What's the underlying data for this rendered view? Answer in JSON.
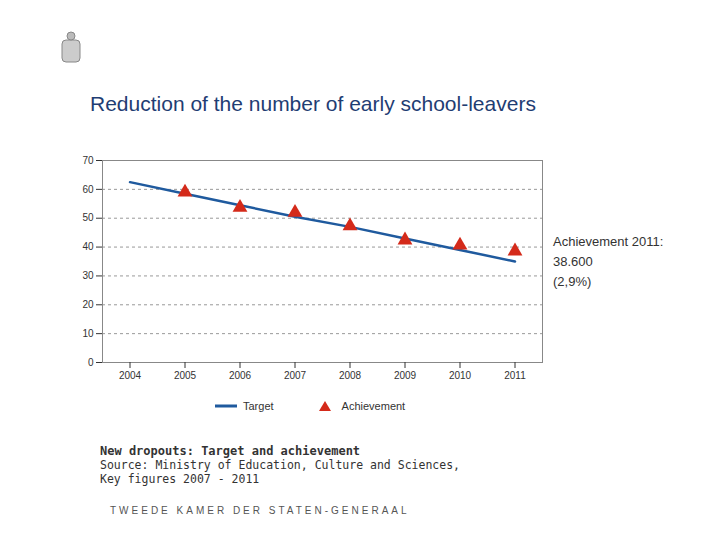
{
  "chart_data": {
    "type": "line",
    "title": "Reduction of the number of early school-leavers",
    "x": [
      2004,
      2005,
      2006,
      2007,
      2008,
      2009,
      2010,
      2011
    ],
    "xlim": [
      2003.5,
      2011.5
    ],
    "xticks": [
      2004,
      2005,
      2006,
      2007,
      2008,
      2009,
      2010,
      2011
    ],
    "ylim": [
      0,
      70
    ],
    "yticks": [
      0,
      10,
      20,
      30,
      40,
      50,
      60,
      70
    ],
    "grid": true,
    "series": [
      {
        "name": "Target",
        "type": "line",
        "color": "#1f5a9e",
        "line_style": "solid",
        "values": [
          62.5,
          58.5,
          54.5,
          50.5,
          47,
          43,
          39,
          35
        ]
      },
      {
        "name": "Achievement",
        "type": "scatter",
        "color": "#d42a1a",
        "marker": "triangle",
        "values": [
          null,
          59,
          53.7,
          52,
          47.3,
          42.4,
          40.6,
          38.6
        ]
      }
    ],
    "annotation": [
      "Achievement 2011:",
      "38.600",
      "(2,9%)"
    ],
    "caption": "New dropouts: Target and achievement",
    "source": "Source: Ministry of Education, Culture and Sciences, Key figures 2007 - 2011",
    "footer": "TWEEDE KAMER DER STATEN-GENERAAL"
  }
}
